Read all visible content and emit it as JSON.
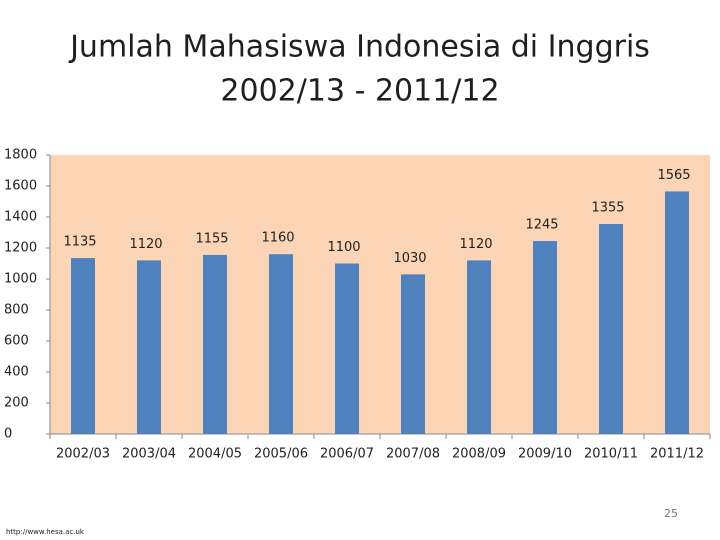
{
  "chart_data": {
    "type": "bar",
    "title": "Jumlah Mahasiswa Indonesia di Inggris",
    "subtitle": "2002/13 - 2011/12",
    "categories": [
      "2002/03",
      "2003/04",
      "2004/05",
      "2005/06",
      "2006/07",
      "2007/08",
      "2008/09",
      "2009/10",
      "2010/11",
      "2011/12"
    ],
    "values": [
      1135,
      1120,
      1155,
      1160,
      1100,
      1030,
      1120,
      1245,
      1355,
      1565
    ],
    "color": "#4f81bd",
    "ylim": [
      0,
      1800
    ],
    "yticks": [
      0,
      200,
      400,
      600,
      800,
      1000,
      1200,
      1400,
      1600,
      1800
    ],
    "grid": false,
    "page_number": "25",
    "source": "http://www.hesa.ac.uk"
  }
}
